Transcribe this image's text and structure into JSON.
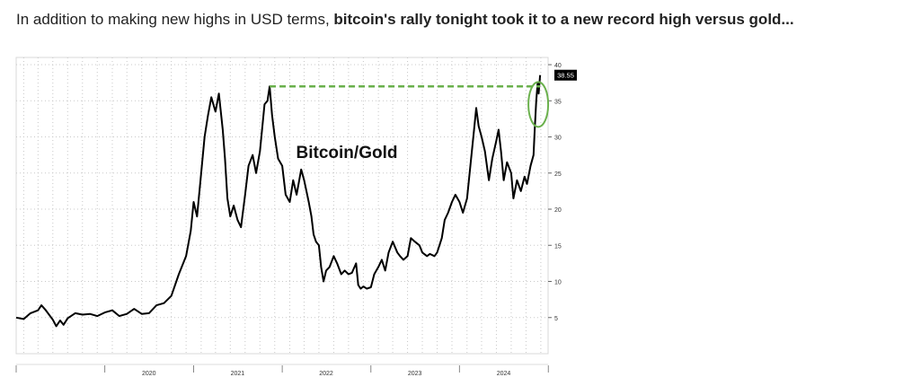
{
  "headline": {
    "normal": "In addition to making new highs in USD terms, ",
    "bold": "bitcoin's rally tonight took it to a new record high versus gold..."
  },
  "colors": {
    "line": "#000000",
    "accent": "#6ab04c",
    "grid": "#c8c8c8",
    "label_bg": "#000000"
  },
  "chart_data": {
    "type": "line",
    "title": "Bitcoin/Gold",
    "xlabel": "",
    "ylabel": "",
    "x_ticks": [
      "2020",
      "2021",
      "2022",
      "2023",
      "2024"
    ],
    "y_ticks": [
      5,
      10,
      15,
      20,
      25,
      30,
      35,
      40
    ],
    "ylim": [
      0,
      41
    ],
    "xlim": [
      "2019-01-01",
      "2024-12-31"
    ],
    "last_value_label": "38.55",
    "record_level": 37.0,
    "grid": true,
    "series": [
      {
        "values": [
          [
            "2019-01-01",
            5.0
          ],
          [
            "2019-02-01",
            4.8
          ],
          [
            "2019-03-01",
            5.6
          ],
          [
            "2019-04-01",
            6.0
          ],
          [
            "2019-04-15",
            6.7
          ],
          [
            "2019-05-01",
            6.1
          ],
          [
            "2019-06-01",
            4.7
          ],
          [
            "2019-06-15",
            3.8
          ],
          [
            "2019-07-01",
            4.6
          ],
          [
            "2019-07-15",
            4.0
          ],
          [
            "2019-08-01",
            4.9
          ],
          [
            "2019-09-01",
            5.6
          ],
          [
            "2019-10-01",
            5.4
          ],
          [
            "2019-11-01",
            5.5
          ],
          [
            "2019-12-01",
            5.2
          ],
          [
            "2020-01-01",
            5.7
          ],
          [
            "2020-02-01",
            6.0
          ],
          [
            "2020-03-01",
            5.2
          ],
          [
            "2020-04-01",
            5.5
          ],
          [
            "2020-05-01",
            6.2
          ],
          [
            "2020-06-01",
            5.5
          ],
          [
            "2020-07-01",
            5.6
          ],
          [
            "2020-08-01",
            6.7
          ],
          [
            "2020-09-01",
            7.0
          ],
          [
            "2020-10-01",
            8.0
          ],
          [
            "2020-11-01",
            11.0
          ],
          [
            "2020-12-01",
            13.5
          ],
          [
            "2020-12-20",
            17.0
          ],
          [
            "2021-01-01",
            21.0
          ],
          [
            "2021-01-15",
            19.0
          ],
          [
            "2021-02-01",
            25.0
          ],
          [
            "2021-02-15",
            30.0
          ],
          [
            "2021-03-01",
            33.0
          ],
          [
            "2021-03-15",
            35.5
          ],
          [
            "2021-04-01",
            33.5
          ],
          [
            "2021-04-15",
            36.0
          ],
          [
            "2021-05-01",
            31.0
          ],
          [
            "2021-05-10",
            27.0
          ],
          [
            "2021-05-20",
            21.5
          ],
          [
            "2021-06-01",
            19.0
          ],
          [
            "2021-06-15",
            20.5
          ],
          [
            "2021-07-01",
            18.5
          ],
          [
            "2021-07-15",
            17.5
          ],
          [
            "2021-08-01",
            22.0
          ],
          [
            "2021-08-15",
            26.0
          ],
          [
            "2021-09-01",
            27.5
          ],
          [
            "2021-09-15",
            25.0
          ],
          [
            "2021-10-01",
            28.0
          ],
          [
            "2021-10-20",
            34.5
          ],
          [
            "2021-11-01",
            35.0
          ],
          [
            "2021-11-10",
            37.0
          ],
          [
            "2021-11-20",
            33.0
          ],
          [
            "2021-12-01",
            30.0
          ],
          [
            "2021-12-15",
            27.0
          ],
          [
            "2022-01-01",
            26.0
          ],
          [
            "2022-01-15",
            22.0
          ],
          [
            "2022-02-01",
            21.0
          ],
          [
            "2022-02-15",
            24.0
          ],
          [
            "2022-03-01",
            22.0
          ],
          [
            "2022-03-20",
            25.5
          ],
          [
            "2022-04-01",
            24.0
          ],
          [
            "2022-04-20",
            21.0
          ],
          [
            "2022-05-01",
            19.0
          ],
          [
            "2022-05-10",
            16.5
          ],
          [
            "2022-05-20",
            15.5
          ],
          [
            "2022-06-01",
            15.0
          ],
          [
            "2022-06-10",
            12.0
          ],
          [
            "2022-06-20",
            10.0
          ],
          [
            "2022-07-01",
            11.5
          ],
          [
            "2022-07-15",
            12.0
          ],
          [
            "2022-08-01",
            13.5
          ],
          [
            "2022-08-15",
            12.5
          ],
          [
            "2022-09-01",
            11.0
          ],
          [
            "2022-09-15",
            11.5
          ],
          [
            "2022-10-01",
            11.0
          ],
          [
            "2022-10-15",
            11.2
          ],
          [
            "2022-11-01",
            12.5
          ],
          [
            "2022-11-10",
            9.5
          ],
          [
            "2022-11-20",
            9.0
          ],
          [
            "2022-12-01",
            9.3
          ],
          [
            "2022-12-15",
            9.0
          ],
          [
            "2023-01-01",
            9.2
          ],
          [
            "2023-01-15",
            11.0
          ],
          [
            "2023-02-01",
            12.0
          ],
          [
            "2023-02-15",
            13.0
          ],
          [
            "2023-03-01",
            11.5
          ],
          [
            "2023-03-15",
            14.0
          ],
          [
            "2023-04-01",
            15.5
          ],
          [
            "2023-04-20",
            14.0
          ],
          [
            "2023-05-01",
            13.5
          ],
          [
            "2023-05-15",
            13.0
          ],
          [
            "2023-06-01",
            13.5
          ],
          [
            "2023-06-15",
            16.0
          ],
          [
            "2023-07-01",
            15.5
          ],
          [
            "2023-07-20",
            15.0
          ],
          [
            "2023-08-01",
            14.0
          ],
          [
            "2023-08-20",
            13.5
          ],
          [
            "2023-09-01",
            13.8
          ],
          [
            "2023-09-20",
            13.5
          ],
          [
            "2023-10-01",
            14.0
          ],
          [
            "2023-10-20",
            16.0
          ],
          [
            "2023-11-01",
            18.5
          ],
          [
            "2023-11-15",
            19.5
          ],
          [
            "2023-12-01",
            21.0
          ],
          [
            "2023-12-15",
            22.0
          ],
          [
            "2024-01-01",
            21.0
          ],
          [
            "2024-01-15",
            19.5
          ],
          [
            "2024-02-01",
            21.5
          ],
          [
            "2024-02-15",
            26.0
          ],
          [
            "2024-03-01",
            31.0
          ],
          [
            "2024-03-10",
            34.0
          ],
          [
            "2024-03-20",
            31.5
          ],
          [
            "2024-04-01",
            30.0
          ],
          [
            "2024-04-15",
            28.0
          ],
          [
            "2024-05-01",
            24.0
          ],
          [
            "2024-05-15",
            27.0
          ],
          [
            "2024-06-01",
            29.5
          ],
          [
            "2024-06-10",
            31.0
          ],
          [
            "2024-06-20",
            28.0
          ],
          [
            "2024-07-01",
            24.0
          ],
          [
            "2024-07-15",
            26.5
          ],
          [
            "2024-08-01",
            25.0
          ],
          [
            "2024-08-10",
            21.5
          ],
          [
            "2024-08-25",
            24.0
          ],
          [
            "2024-09-10",
            22.5
          ],
          [
            "2024-09-25",
            24.5
          ],
          [
            "2024-10-05",
            23.5
          ],
          [
            "2024-10-20",
            26.0
          ],
          [
            "2024-11-01",
            27.5
          ],
          [
            "2024-11-06",
            31.0
          ],
          [
            "2024-11-12",
            35.0
          ],
          [
            "2024-11-18",
            37.5
          ],
          [
            "2024-11-22",
            36.0
          ],
          [
            "2024-11-28",
            38.55
          ]
        ]
      }
    ]
  }
}
